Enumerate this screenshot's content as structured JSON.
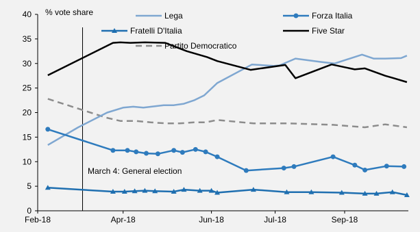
{
  "chart_data": {
    "type": "line",
    "ylabel": "% vote share",
    "ylim": [
      0,
      40
    ],
    "yticks": [
      0,
      5,
      10,
      15,
      20,
      25,
      30,
      35,
      40
    ],
    "xlim": [
      "2018-02-01",
      "2018-10-15"
    ],
    "xticks": [
      {
        "date": "2018-02-01",
        "label": "Feb-18"
      },
      {
        "date": "2018-04-01",
        "label": "Apr-18"
      },
      {
        "date": "2018-06-01",
        "label": "Jun-18"
      },
      {
        "date": "2018-07-15",
        "label": "Jul-18"
      },
      {
        "date": "2018-09-01",
        "label": "Sep-18"
      }
    ],
    "grid": false,
    "legend_position": "top",
    "annotation": {
      "label": "March 4: General election",
      "date": "2018-03-04"
    },
    "series": [
      {
        "name": "Lega",
        "color": "#7fa7d1",
        "style": "solid",
        "marker": "none",
        "x": [
          "2018-02-08",
          "2018-03-01",
          "2018-03-21",
          "2018-04-01",
          "2018-04-08",
          "2018-04-15",
          "2018-04-29",
          "2018-05-06",
          "2018-05-13",
          "2018-05-20",
          "2018-05-27",
          "2018-06-05",
          "2018-06-29",
          "2018-07-14",
          "2018-07-18",
          "2018-07-29",
          "2018-08-16",
          "2018-08-25",
          "2018-09-13",
          "2018-09-21",
          "2018-09-29",
          "2018-10-10",
          "2018-10-14"
        ],
        "y": [
          13.4,
          17.0,
          20.0,
          21.0,
          21.2,
          21.0,
          21.5,
          21.5,
          21.8,
          22.5,
          23.5,
          26.0,
          29.8,
          29.5,
          29.6,
          31.0,
          30.3,
          30.0,
          31.8,
          31.0,
          31.0,
          31.1,
          31.6
        ]
      },
      {
        "name": "Forza Italia",
        "color": "#2e7bbd",
        "style": "solid",
        "marker": "circle",
        "x": [
          "2018-02-08",
          "2018-03-25",
          "2018-04-04",
          "2018-04-10",
          "2018-04-17",
          "2018-04-25",
          "2018-05-06",
          "2018-05-12",
          "2018-05-21",
          "2018-05-28",
          "2018-06-05",
          "2018-06-25",
          "2018-07-21",
          "2018-07-28",
          "2018-08-24",
          "2018-09-08",
          "2018-09-15",
          "2018-09-30",
          "2018-10-12"
        ],
        "y": [
          16.6,
          12.3,
          12.3,
          12.0,
          11.7,
          11.6,
          12.3,
          11.9,
          12.5,
          12.0,
          11.0,
          8.2,
          8.7,
          9.0,
          11.0,
          9.3,
          8.3,
          9.1,
          9.0
        ]
      },
      {
        "name": "Fratelli D'Italia",
        "color": "#1f6fb0",
        "style": "solid",
        "marker": "triangle",
        "x": [
          "2018-02-08",
          "2018-03-25",
          "2018-04-02",
          "2018-04-09",
          "2018-04-16",
          "2018-04-23",
          "2018-05-06",
          "2018-05-13",
          "2018-05-24",
          "2018-06-01",
          "2018-06-05",
          "2018-06-30",
          "2018-07-23",
          "2018-08-09",
          "2018-08-30",
          "2018-09-15",
          "2018-09-23",
          "2018-10-04",
          "2018-10-14"
        ],
        "y": [
          4.7,
          3.9,
          3.9,
          4.0,
          4.1,
          4.0,
          3.9,
          4.3,
          4.1,
          4.1,
          3.7,
          4.3,
          3.8,
          3.8,
          3.7,
          3.5,
          3.5,
          3.8,
          3.2
        ]
      },
      {
        "name": "Five Star",
        "color": "#000000",
        "style": "solid",
        "marker": "none",
        "x": [
          "2018-02-08",
          "2018-03-25",
          "2018-03-30",
          "2018-04-06",
          "2018-04-16",
          "2018-04-30",
          "2018-05-15",
          "2018-05-29",
          "2018-06-05",
          "2018-06-28",
          "2018-07-22",
          "2018-07-29",
          "2018-08-23",
          "2018-09-08",
          "2018-09-15",
          "2018-09-29",
          "2018-10-05",
          "2018-10-14"
        ],
        "y": [
          27.6,
          34.2,
          34.3,
          34.2,
          34.3,
          34.2,
          32.5,
          31.3,
          30.5,
          28.7,
          29.7,
          27.0,
          29.8,
          28.8,
          29.0,
          27.5,
          27.0,
          26.2
        ]
      },
      {
        "name": "Partito Democratico",
        "color": "#8c8c8c",
        "style": "dashed",
        "marker": "none",
        "x": [
          "2018-02-08",
          "2018-03-20",
          "2018-03-30",
          "2018-04-10",
          "2018-04-20",
          "2018-05-01",
          "2018-05-10",
          "2018-05-20",
          "2018-05-28",
          "2018-06-05",
          "2018-06-30",
          "2018-07-25",
          "2018-08-24",
          "2018-09-15",
          "2018-09-29",
          "2018-10-14"
        ],
        "y": [
          22.8,
          19.0,
          18.3,
          18.3,
          18.0,
          17.8,
          17.8,
          18.0,
          18.0,
          18.5,
          17.8,
          17.8,
          17.5,
          17.0,
          17.6,
          17.0
        ]
      }
    ]
  }
}
